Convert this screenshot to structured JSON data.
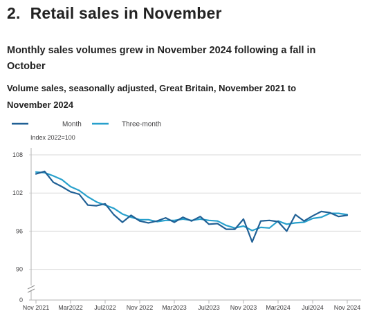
{
  "section": {
    "number": "2.",
    "title": "Retail sales in November"
  },
  "subtitle": "Monthly sales volumes grew in November 2024 following a fall in October",
  "colors": {
    "month": "#206095",
    "three_month": "#27a0cc",
    "grid": "#d9d9d9",
    "axis_text": "#414042"
  },
  "chart_data": {
    "type": "line",
    "title": "Volume sales, seasonally adjusted, Great Britain, November 2021 to November 2024",
    "ylabel": "Index 2022=100",
    "xlabel": "",
    "ylim": [
      0,
      110
    ],
    "y_ticks": [
      0,
      90,
      96,
      102,
      108
    ],
    "y_tick_labels": [
      "0",
      "90",
      "96",
      "102",
      "108"
    ],
    "axis_break": true,
    "grid": true,
    "legend_position": "top-left",
    "x": [
      "Nov 2021",
      "Dec 2021",
      "Jan 2022",
      "Feb 2022",
      "Mar 2022",
      "Apr 2022",
      "May 2022",
      "Jun 2022",
      "Jul 2022",
      "Aug 2022",
      "Sep 2022",
      "Oct 2022",
      "Nov 2022",
      "Dec 2022",
      "Jan 2023",
      "Feb 2023",
      "Mar 2023",
      "Apr 2023",
      "May 2023",
      "Jun 2023",
      "Jul 2023",
      "Aug 2023",
      "Sep 2023",
      "Oct 2023",
      "Nov 2023",
      "Dec 2023",
      "Jan 2024",
      "Feb 2024",
      "Mar 2024",
      "Apr 2024",
      "May 2024",
      "Jun 2024",
      "Jul 2024",
      "Aug 2024",
      "Sep 2024",
      "Oct 2024",
      "Nov 2024"
    ],
    "x_tick_labels": [
      {
        "index": 0,
        "label": "Nov 2021"
      },
      {
        "index": 4,
        "label": "Mar2022"
      },
      {
        "index": 8,
        "label": "Jul2022"
      },
      {
        "index": 12,
        "label": "Nov 2022"
      },
      {
        "index": 16,
        "label": "Mar2023"
      },
      {
        "index": 20,
        "label": "Jul2023"
      },
      {
        "index": 24,
        "label": "Nov 2023"
      },
      {
        "index": 28,
        "label": "Mar2024"
      },
      {
        "index": 32,
        "label": "Jul2024"
      },
      {
        "index": 36,
        "label": "Nov 2024"
      }
    ],
    "series": [
      {
        "name": "Month",
        "color": "#206095",
        "values": [
          105.0,
          105.4,
          103.7,
          103.0,
          102.2,
          101.8,
          100.1,
          100.0,
          100.3,
          98.6,
          97.4,
          98.5,
          97.6,
          97.3,
          97.6,
          98.1,
          97.4,
          98.2,
          97.6,
          98.3,
          97.1,
          97.2,
          96.3,
          96.3,
          97.9,
          94.3,
          97.6,
          97.7,
          97.5,
          96.0,
          98.6,
          97.6,
          98.4,
          99.1,
          98.9,
          98.3,
          98.5
        ]
      },
      {
        "name": "Three-month",
        "color": "#27a0cc",
        "values": [
          105.3,
          105.2,
          104.7,
          104.1,
          103.0,
          102.4,
          101.4,
          100.6,
          100.1,
          99.6,
          98.7,
          98.2,
          97.8,
          97.8,
          97.5,
          97.7,
          97.7,
          97.9,
          97.7,
          97.9,
          97.7,
          97.6,
          96.9,
          96.5,
          96.8,
          96.1,
          96.6,
          96.5,
          97.6,
          97.1,
          97.3,
          97.4,
          98.0,
          98.2,
          98.8,
          98.8,
          98.6
        ]
      }
    ]
  }
}
